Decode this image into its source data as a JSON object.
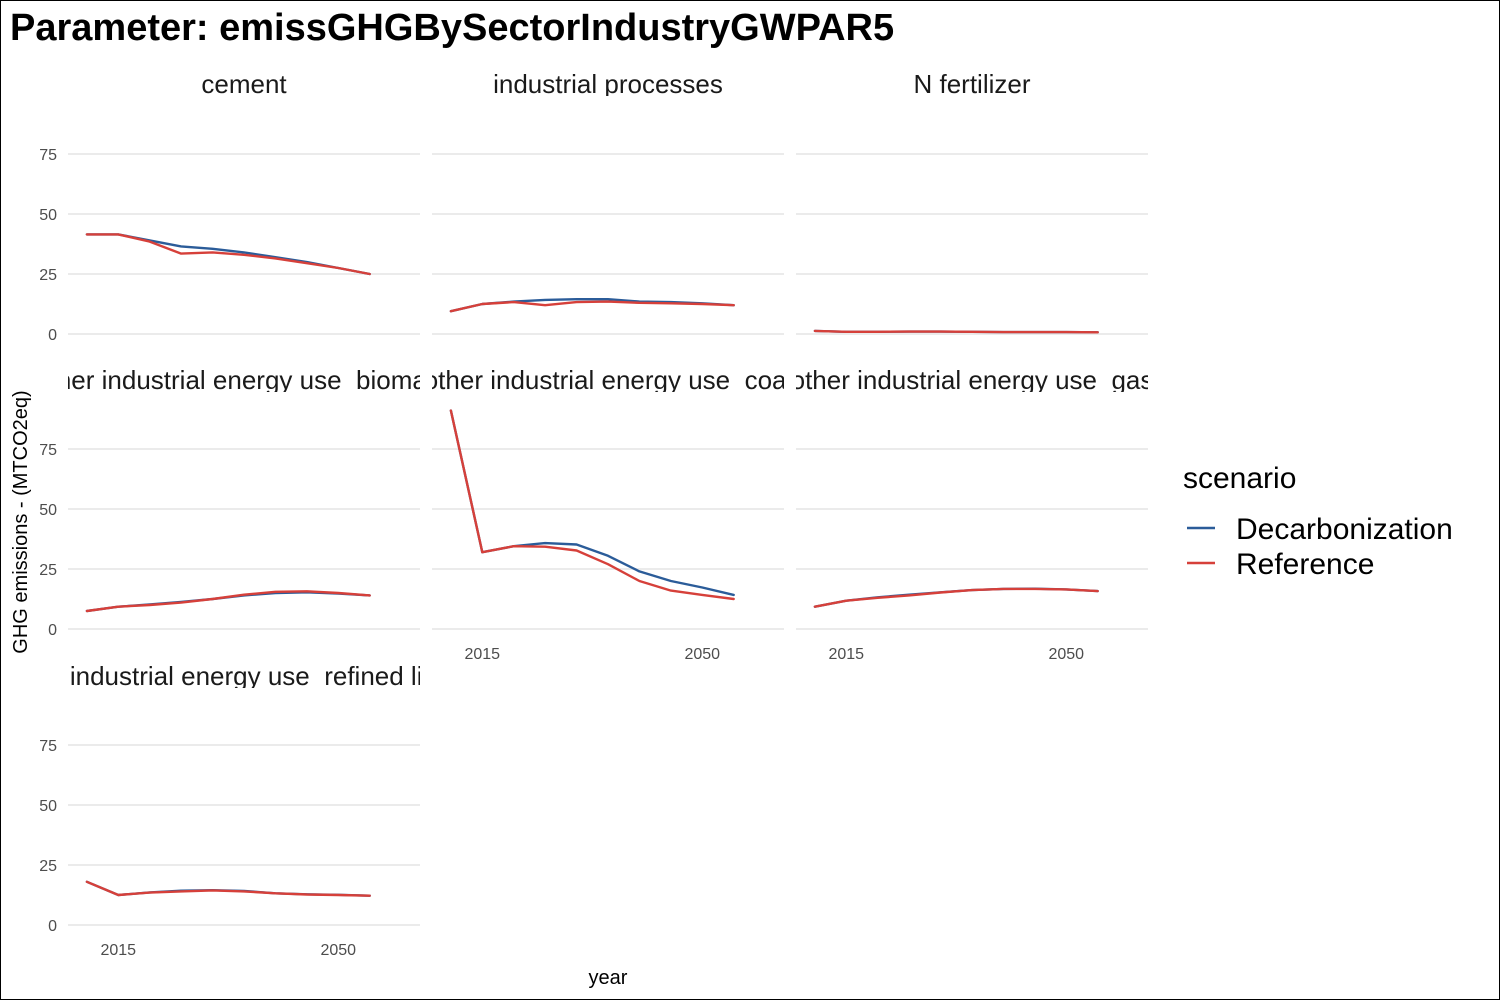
{
  "title": "Parameter: emissGHGBySectorIndustryGWPAR5",
  "chart_data": {
    "type": "line",
    "title": "Parameter: emissGHGBySectorIndustryGWPAR5",
    "xlabel": "year",
    "ylabel": "GHG emissions - (MTCO2eq)",
    "x_ticks": [
      2015,
      2050
    ],
    "y_ticks": [
      0,
      25,
      50,
      75
    ],
    "xlim": [
      2007,
      2063
    ],
    "ylim": [
      -4,
      90
    ],
    "grid": true,
    "legend": {
      "title": "scenario",
      "placement": "right",
      "entries": [
        {
          "name": "Decarbonization",
          "color": "#2b5c99"
        },
        {
          "name": "Reference",
          "color": "#d6403a"
        }
      ]
    },
    "x": [
      2010,
      2015,
      2020,
      2025,
      2030,
      2035,
      2040,
      2045,
      2050,
      2055
    ],
    "panels": [
      {
        "label": "cement",
        "series": [
          {
            "name": "Decarbonization",
            "values": [
              41.5,
              41.5,
              39,
              36.5,
              35.5,
              34,
              32,
              30,
              27.5,
              25
            ]
          },
          {
            "name": "Reference",
            "values": [
              41.5,
              41.5,
              38.5,
              33.5,
              34,
              33,
              31.5,
              29.5,
              27.5,
              25
            ]
          }
        ]
      },
      {
        "label": "industrial processes",
        "series": [
          {
            "name": "Decarbonization",
            "values": [
              9.5,
              12.5,
              13.5,
              14.2,
              14.5,
              14.5,
              13.5,
              13.3,
              12.8,
              12
            ]
          },
          {
            "name": "Reference",
            "values": [
              9.5,
              12.5,
              13.3,
              12,
              13.3,
              13.5,
              13,
              12.8,
              12.5,
              12
            ]
          }
        ]
      },
      {
        "label": "N fertilizer",
        "series": [
          {
            "name": "Decarbonization",
            "values": [
              1.3,
              0.9,
              0.9,
              1,
              1,
              0.9,
              0.8,
              0.8,
              0.8,
              0.7
            ]
          },
          {
            "name": "Reference",
            "values": [
              1.3,
              0.9,
              0.9,
              1,
              1,
              0.9,
              0.8,
              0.8,
              0.8,
              0.7
            ]
          }
        ]
      },
      {
        "label": "other industrial energy use_biomass",
        "series": [
          {
            "name": "Decarbonization",
            "values": [
              7.5,
              9.3,
              10.2,
              11.3,
              12.5,
              14,
              15,
              15.3,
              14.8,
              14
            ]
          },
          {
            "name": "Reference",
            "values": [
              7.5,
              9.3,
              10,
              11,
              12.5,
              14.3,
              15.5,
              15.7,
              15,
              14
            ]
          }
        ]
      },
      {
        "label": "other industrial energy use_coal",
        "series": [
          {
            "name": "Decarbonization",
            "values": [
              91,
              32,
              34.5,
              35.8,
              35.2,
              30.5,
              24,
              20,
              17.3,
              14.2
            ]
          },
          {
            "name": "Reference",
            "values": [
              91,
              32,
              34.5,
              34.3,
              32.7,
              27,
              20,
              16,
              14.2,
              12.5
            ]
          }
        ]
      },
      {
        "label": "other industrial energy use_gas",
        "series": [
          {
            "name": "Decarbonization",
            "values": [
              9.3,
              11.8,
              13.2,
              14.3,
              15.3,
              16.2,
              16.7,
              16.8,
              16.5,
              15.8
            ]
          },
          {
            "name": "Reference",
            "values": [
              9.3,
              11.8,
              13,
              14,
              15.2,
              16.2,
              16.7,
              16.7,
              16.5,
              15.8
            ]
          }
        ]
      },
      {
        "label": "other industrial energy use_refined liquids",
        "series": [
          {
            "name": "Decarbonization",
            "values": [
              18,
              12.5,
              13.6,
              14.3,
              14.5,
              14.2,
              13.2,
              12.8,
              12.6,
              12.2
            ]
          },
          {
            "name": "Reference",
            "values": [
              18,
              12.5,
              13.5,
              14,
              14.4,
              14,
              13.2,
              12.7,
              12.5,
              12.2
            ]
          }
        ]
      }
    ]
  }
}
